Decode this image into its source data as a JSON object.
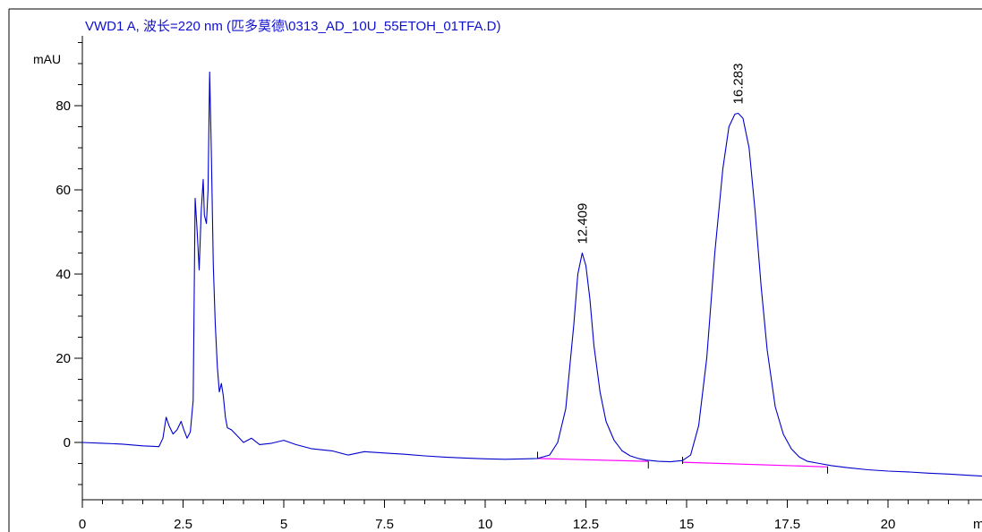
{
  "chart_data": {
    "type": "line",
    "title": "VWD1 A, 波长=220 nm (匹多莫德\\0313_AD_10U_55ETOH_01TFA.D)",
    "ylabel": "mAU",
    "xlabel": "m",
    "xlim": [
      0,
      22.35
    ],
    "ylim": [
      -14,
      100
    ],
    "x_ticks": [
      0,
      2.5,
      5,
      7.5,
      10,
      12.5,
      15,
      17.5,
      20
    ],
    "x_tick_labels": [
      "0",
      "2.5",
      "5",
      "7.5",
      "10",
      "12.5",
      "15",
      "17.5",
      "20"
    ],
    "y_ticks": [
      0,
      20,
      40,
      60,
      80
    ],
    "y_tick_labels": [
      "0",
      "20",
      "40",
      "60",
      "80"
    ],
    "series": [
      {
        "color": "#0000cc",
        "x": [
          0,
          0.5,
          1.0,
          1.5,
          1.9,
          2.0,
          2.08,
          2.15,
          2.25,
          2.35,
          2.45,
          2.52,
          2.6,
          2.68,
          2.75,
          2.8,
          2.85,
          2.9,
          2.95,
          3.0,
          3.03,
          3.08,
          3.12,
          3.16,
          3.2,
          3.25,
          3.3,
          3.35,
          3.4,
          3.45,
          3.5,
          3.55,
          3.6,
          3.7,
          3.85,
          4.0,
          4.2,
          4.4,
          4.7,
          5.0,
          5.3,
          5.7,
          6.2,
          6.6,
          7.0,
          7.5,
          8.0,
          8.5,
          9.0,
          9.5,
          10.0,
          10.5,
          11.0,
          11.3,
          11.6,
          11.8,
          12.0,
          12.2,
          12.3,
          12.409,
          12.5,
          12.6,
          12.7,
          12.85,
          13.0,
          13.2,
          13.4,
          13.6,
          13.8,
          14.0,
          14.3,
          14.6,
          14.9,
          15.1,
          15.3,
          15.5,
          15.7,
          15.9,
          16.05,
          16.2,
          16.283,
          16.4,
          16.55,
          16.7,
          16.85,
          17.0,
          17.2,
          17.4,
          17.6,
          17.8,
          18.0,
          18.3,
          18.6,
          19.0,
          19.5,
          20.0,
          20.5,
          21.0,
          21.5,
          22.0,
          22.35
        ],
        "y": [
          0,
          -0.2,
          -0.4,
          -0.8,
          -1.0,
          1.0,
          6.0,
          4.0,
          2.0,
          3.0,
          5.0,
          3.0,
          1.0,
          2.5,
          10.0,
          58.0,
          50.0,
          41.0,
          55.0,
          62.5,
          54.0,
          52.0,
          60.0,
          88.0,
          70.0,
          42.0,
          28.0,
          18.0,
          12.0,
          14.0,
          11.0,
          6.0,
          3.5,
          3.0,
          1.5,
          0.0,
          1.0,
          -0.5,
          -0.2,
          0.5,
          -0.5,
          -1.5,
          -2.0,
          -3.0,
          -2.2,
          -2.5,
          -2.8,
          -3.2,
          -3.5,
          -3.7,
          -3.9,
          -4.0,
          -3.9,
          -3.8,
          -3.0,
          0.0,
          8.0,
          28.0,
          40.0,
          45.0,
          42.0,
          34.0,
          23.0,
          12.0,
          5.0,
          0.5,
          -2.0,
          -3.2,
          -3.8,
          -4.2,
          -4.5,
          -4.6,
          -4.3,
          -3.0,
          4.0,
          20.0,
          45.0,
          65.0,
          75.0,
          78.0,
          78.2,
          77.0,
          70.0,
          55.0,
          37.0,
          22.0,
          8.5,
          2.0,
          -1.5,
          -3.5,
          -4.5,
          -5.0,
          -5.5,
          -6.0,
          -6.5,
          -6.8,
          -7.0,
          -7.3,
          -7.5,
          -7.8,
          -8.0
        ]
      }
    ],
    "baselines": [
      {
        "color": "#ff00ff",
        "x": [
          11.3,
          14.05
        ],
        "y": [
          -3.8,
          -4.5
        ]
      },
      {
        "color": "#ff00ff",
        "x": [
          14.9,
          18.5
        ],
        "y": [
          -4.7,
          -5.8
        ]
      }
    ],
    "peak_labels": [
      {
        "x": 12.409,
        "y": 45.0,
        "text": "12.409"
      },
      {
        "x": 16.283,
        "y": 78.2,
        "text": "16.283"
      }
    ],
    "event_ticks": [
      11.3,
      14.05,
      14.9,
      18.5
    ]
  }
}
